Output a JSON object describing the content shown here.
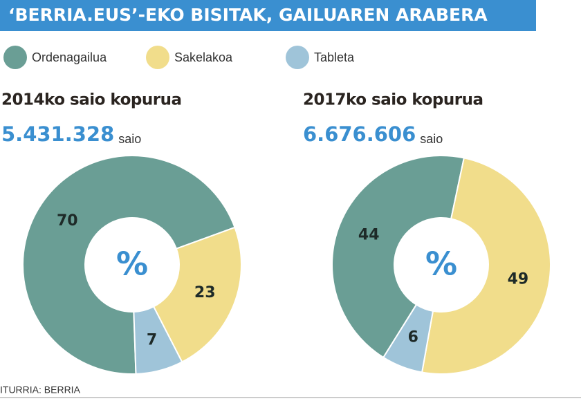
{
  "title": "‘BERRIA.EUS’-EKO BISITAK, GAILUAREN ARABERA",
  "source": "ITURRIA: BERRIA",
  "chart_data": [
    {
      "type": "pie",
      "title": "2014ko saio kopurua",
      "total": "5.431.328",
      "unit": "saio",
      "center_label": "%",
      "categories": [
        "Ordenagailua",
        "Sakelakoa",
        "Tableta"
      ],
      "values": [
        70,
        23,
        7
      ],
      "colors": [
        "#6a9e95",
        "#f1dd8b",
        "#9fc4d9"
      ]
    },
    {
      "type": "pie",
      "title": "2017ko saio kopurua",
      "total": "6.676.606",
      "unit": "saio",
      "center_label": "%",
      "categories": [
        "Ordenagailua",
        "Sakelakoa",
        "Tableta"
      ],
      "values": [
        44,
        49,
        6
      ],
      "colors": [
        "#6a9e95",
        "#f1dd8b",
        "#9fc4d9"
      ]
    }
  ]
}
